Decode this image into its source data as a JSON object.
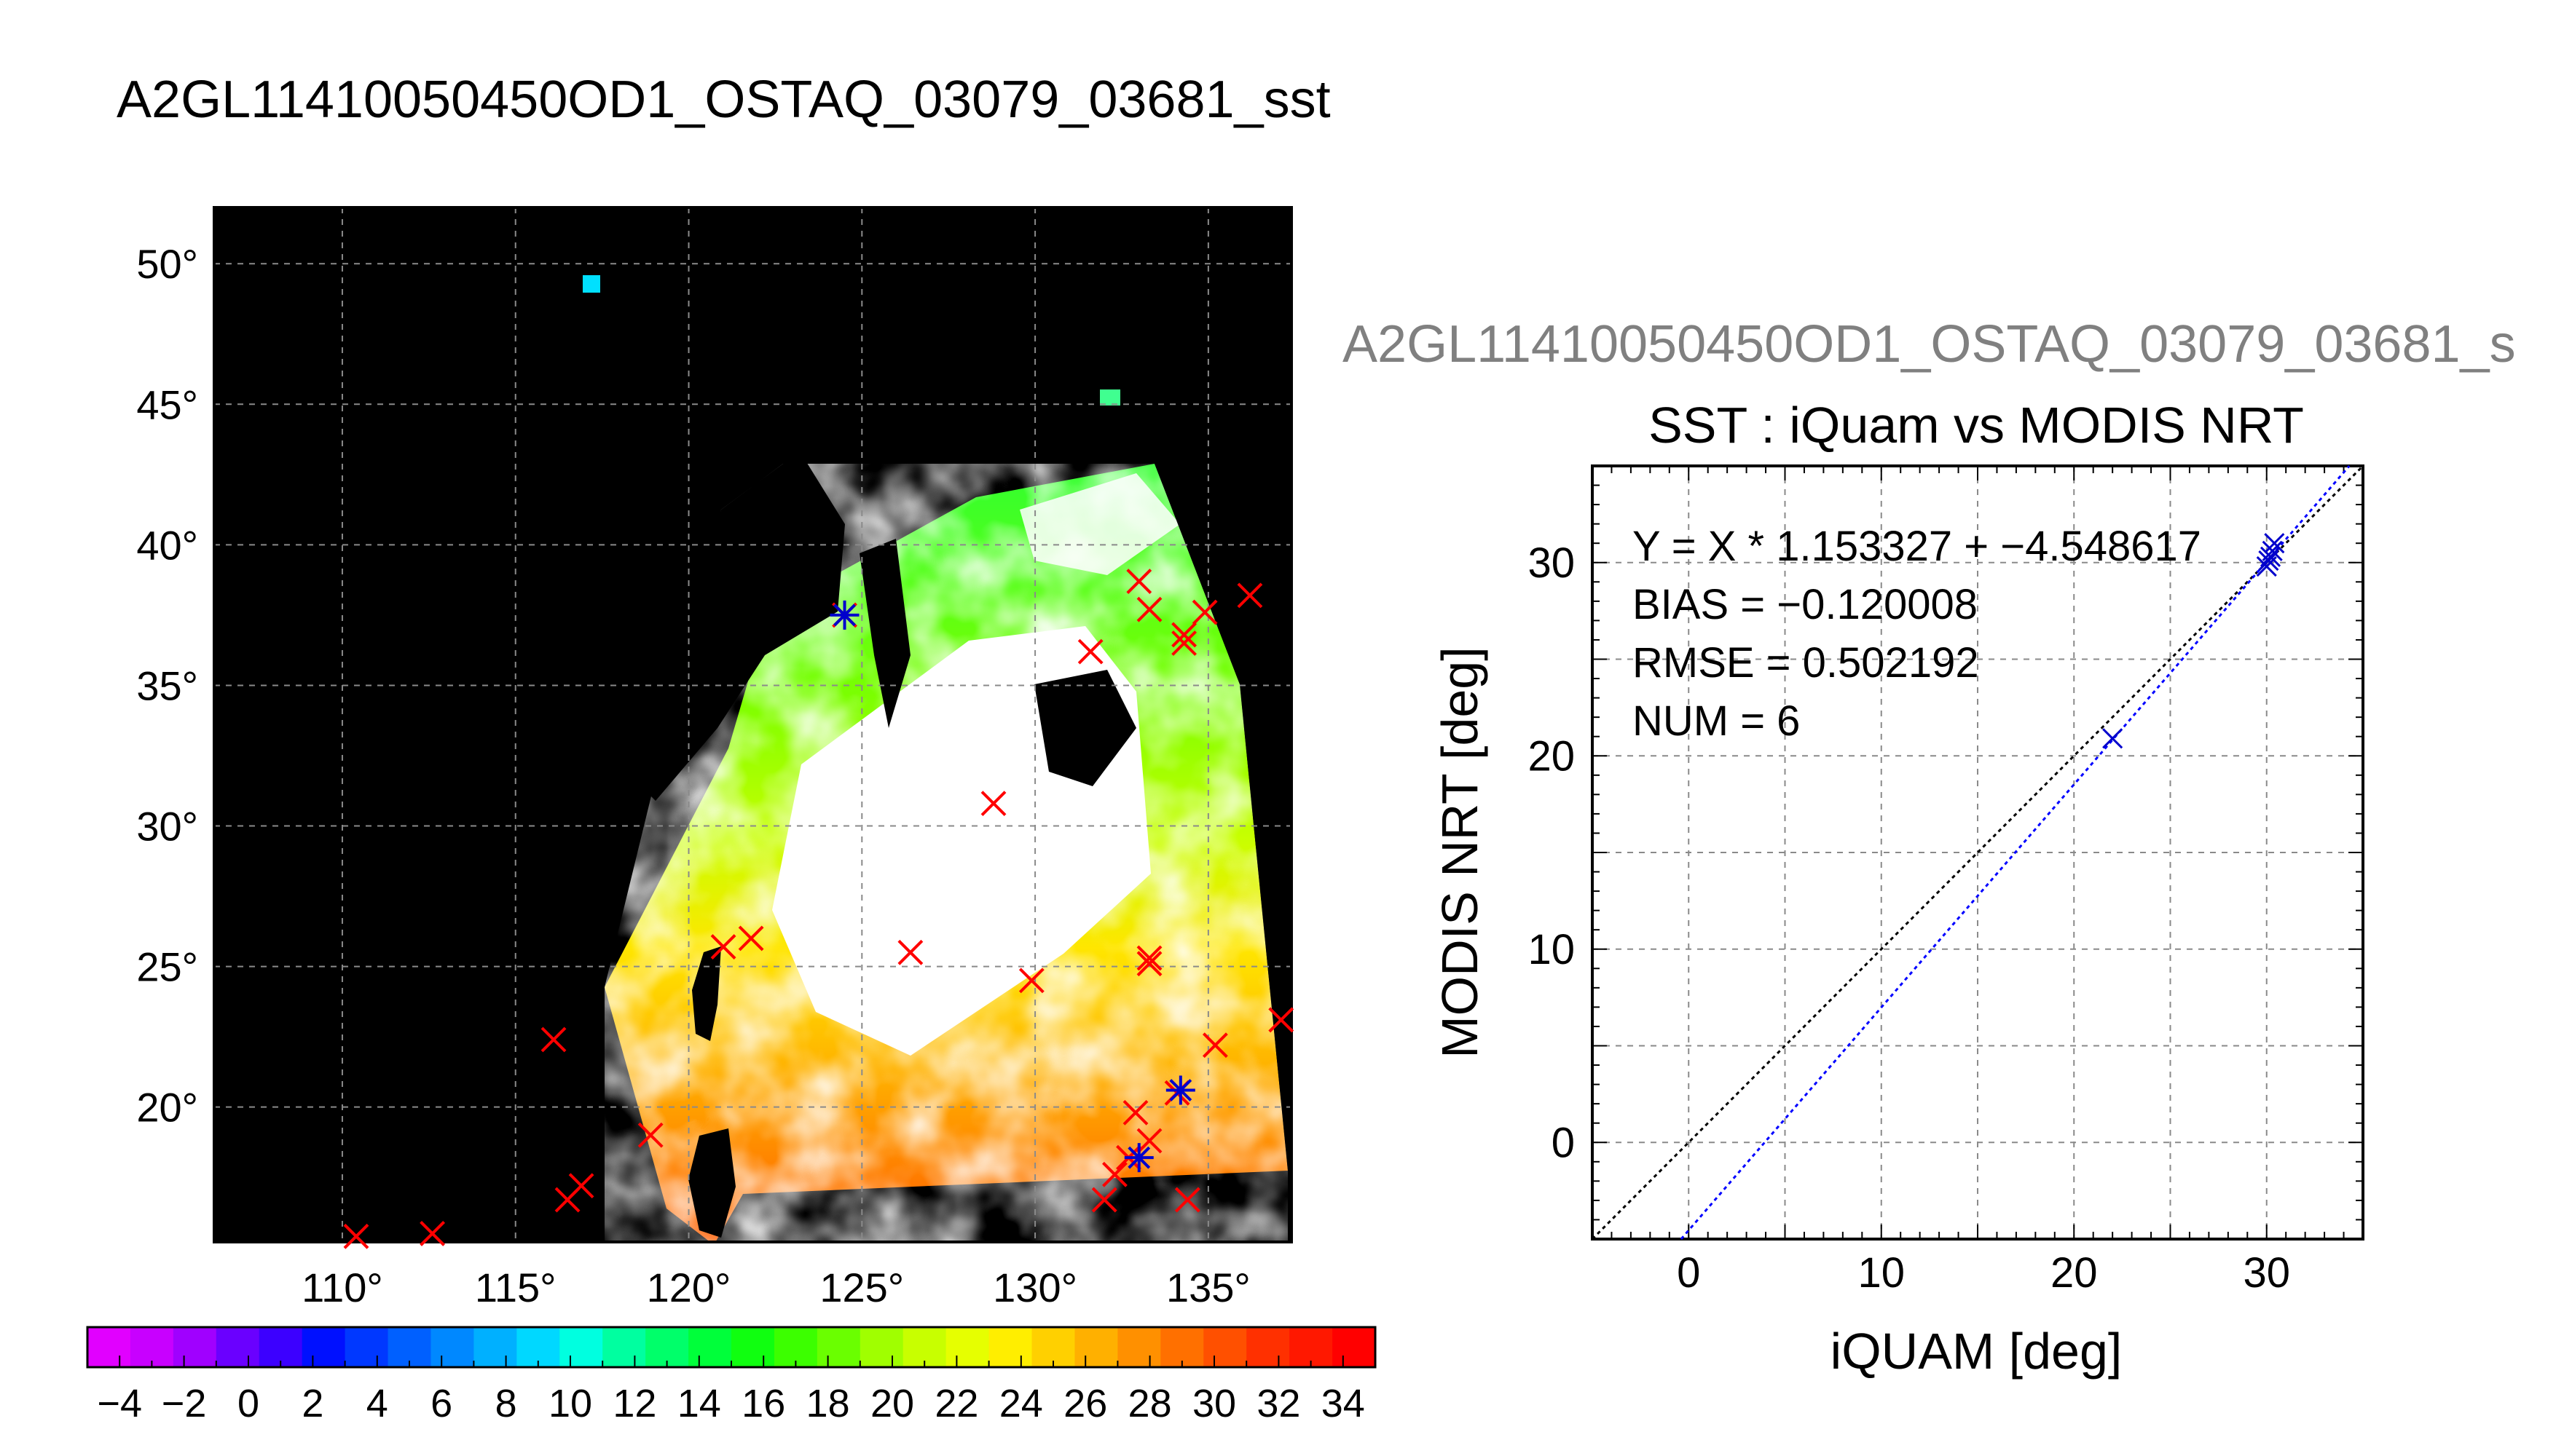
{
  "figure": {
    "title": "A2GL11410050450OD1_OSTAQ_03079_03681_sst",
    "secondary_title": "A2GL11410050450OD1_OSTAQ_03079_03681_s"
  },
  "colors": {
    "background": "#000000",
    "land": "#000000",
    "cloud": "#ffffff",
    "insitu_marker": "#ff0000",
    "matchup_marker": "#0000cc",
    "fit_line": "#0000ff",
    "identity_line": "#000000",
    "grid": "#888888"
  },
  "chart_data": [
    {
      "type": "heatmap",
      "title": "A2GL11410050450OD1_OSTAQ_03079_03681_sst",
      "lon_ticks": [
        "110°",
        "115°",
        "120°",
        "125°",
        "130°",
        "135°"
      ],
      "lat_ticks": [
        "50°",
        "45°",
        "40°",
        "35°",
        "30°",
        "25°",
        "20°"
      ],
      "lon_range": [
        106.3,
        137.4
      ],
      "lat_range": [
        15.2,
        52.0
      ],
      "grid": true,
      "colorbar": {
        "ticks": [
          "−4",
          "−2",
          "0",
          "2",
          "4",
          "6",
          "8",
          "10",
          "12",
          "14",
          "16",
          "18",
          "20",
          "22",
          "24",
          "26",
          "28",
          "30",
          "32",
          "34"
        ],
        "range": [
          -5,
          35
        ],
        "colors": [
          "#e100ff",
          "#c800ff",
          "#a000ff",
          "#6a00ff",
          "#3c00ff",
          "#0010ff",
          "#0038ff",
          "#0060ff",
          "#0088ff",
          "#00b0ff",
          "#00d8ff",
          "#00ffe0",
          "#00ffa0",
          "#00ff6a",
          "#00ff3a",
          "#10ff10",
          "#3cff00",
          "#6aff00",
          "#a0ff00",
          "#c8ff00",
          "#e6ff00",
          "#ffee00",
          "#ffd000",
          "#ffb000",
          "#ff9000",
          "#ff7000",
          "#ff5000",
          "#ff3000",
          "#ff1800",
          "#ff0000"
        ]
      },
      "insitu_points": [
        {
          "lon": 124.5,
          "lat": 37.5
        },
        {
          "lon": 133.0,
          "lat": 38.7
        },
        {
          "lon": 133.3,
          "lat": 37.7
        },
        {
          "lon": 134.3,
          "lat": 36.8
        },
        {
          "lon": 134.3,
          "lat": 36.5
        },
        {
          "lon": 134.9,
          "lat": 37.6
        },
        {
          "lon": 136.2,
          "lat": 38.2
        },
        {
          "lon": 131.6,
          "lat": 36.2
        },
        {
          "lon": 128.8,
          "lat": 30.8
        },
        {
          "lon": 121.0,
          "lat": 25.7
        },
        {
          "lon": 121.8,
          "lat": 26.0
        },
        {
          "lon": 126.4,
          "lat": 25.5
        },
        {
          "lon": 129.9,
          "lat": 24.5
        },
        {
          "lon": 133.3,
          "lat": 25.3
        },
        {
          "lon": 133.3,
          "lat": 25.1
        },
        {
          "lon": 137.1,
          "lat": 23.1
        },
        {
          "lon": 135.2,
          "lat": 22.2
        },
        {
          "lon": 116.1,
          "lat": 22.4
        },
        {
          "lon": 118.9,
          "lat": 19.0
        },
        {
          "lon": 116.9,
          "lat": 17.2
        },
        {
          "lon": 116.5,
          "lat": 16.7
        },
        {
          "lon": 110.4,
          "lat": 15.4
        },
        {
          "lon": 112.6,
          "lat": 15.5
        },
        {
          "lon": 132.7,
          "lat": 18.2
        },
        {
          "lon": 133.3,
          "lat": 18.8
        },
        {
          "lon": 132.3,
          "lat": 17.6
        },
        {
          "lon": 132.0,
          "lat": 16.7
        },
        {
          "lon": 134.4,
          "lat": 16.7
        },
        {
          "lon": 134.1,
          "lat": 20.5
        },
        {
          "lon": 132.9,
          "lat": 19.8
        }
      ],
      "matchup_points": [
        {
          "lon": 124.5,
          "lat": 37.5
        },
        {
          "lon": 134.2,
          "lat": 20.6
        },
        {
          "lon": 133.0,
          "lat": 18.2
        }
      ]
    },
    {
      "type": "scatter",
      "title": "SST : iQuam vs MODIS NRT",
      "xlabel": "iQUAM [deg]",
      "ylabel": "MODIS NRT [deg]",
      "xlim": [
        -5,
        35
      ],
      "ylim": [
        -5,
        35
      ],
      "xticks": [
        "0",
        "10",
        "20",
        "30"
      ],
      "yticks": [
        "0",
        "10",
        "20",
        "30"
      ],
      "grid": true,
      "annotations": [
        "Y = X * 1.153327 + −4.548617",
        "BIAS = −0.120008",
        "RMSE = 0.502192",
        "NUM = 6"
      ],
      "fit": {
        "slope": 1.153327,
        "intercept": -4.548617
      },
      "points": [
        {
          "x": 22.0,
          "y": 20.9
        },
        {
          "x": 30.0,
          "y": 29.8
        },
        {
          "x": 30.1,
          "y": 30.1
        },
        {
          "x": 30.3,
          "y": 30.6
        },
        {
          "x": 30.4,
          "y": 31.0
        },
        {
          "x": 30.2,
          "y": 30.3
        }
      ]
    }
  ]
}
